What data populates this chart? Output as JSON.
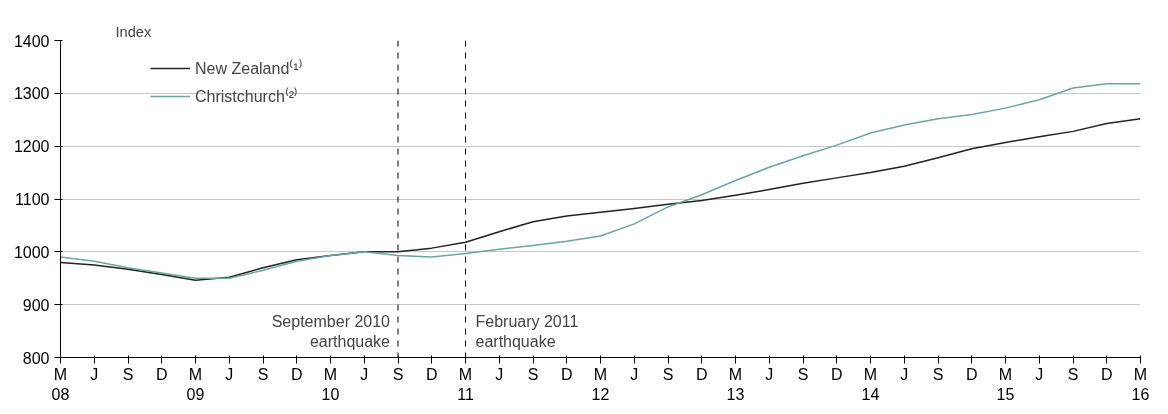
{
  "chart_data": {
    "type": "line",
    "ylabel": "Index",
    "x": [
      "2008-03",
      "2008-06",
      "2008-09",
      "2008-12",
      "2009-03",
      "2009-06",
      "2009-09",
      "2009-12",
      "2010-03",
      "2010-06",
      "2010-09",
      "2010-12",
      "2011-03",
      "2011-06",
      "2011-09",
      "2011-12",
      "2012-03",
      "2012-06",
      "2012-09",
      "2012-12",
      "2013-03",
      "2013-06",
      "2013-09",
      "2013-12",
      "2014-03",
      "2014-06",
      "2014-09",
      "2014-12",
      "2015-03",
      "2015-06",
      "2015-09",
      "2015-12",
      "2016-03"
    ],
    "xlim": [
      "2008-03",
      "2016-03"
    ],
    "xticks": [
      {
        "value": "2008-03",
        "label": "M\n08"
      },
      {
        "value": "2008-06",
        "label": "J"
      },
      {
        "value": "2008-09",
        "label": "S"
      },
      {
        "value": "2008-12",
        "label": "D"
      },
      {
        "value": "2009-03",
        "label": "M\n09"
      },
      {
        "value": "2009-06",
        "label": "J"
      },
      {
        "value": "2009-09",
        "label": "S"
      },
      {
        "value": "2009-12",
        "label": "D"
      },
      {
        "value": "2010-03",
        "label": "M\n10"
      },
      {
        "value": "2010-06",
        "label": "J"
      },
      {
        "value": "2010-09",
        "label": "S"
      },
      {
        "value": "2010-12",
        "label": "D"
      },
      {
        "value": "2011-03",
        "label": "M\n11"
      },
      {
        "value": "2011-06",
        "label": "J"
      },
      {
        "value": "2011-09",
        "label": "S"
      },
      {
        "value": "2011-12",
        "label": "D"
      },
      {
        "value": "2012-03",
        "label": "M\n12"
      },
      {
        "value": "2012-06",
        "label": "J"
      },
      {
        "value": "2012-09",
        "label": "S"
      },
      {
        "value": "2012-12",
        "label": "D"
      },
      {
        "value": "2013-03",
        "label": "M\n13"
      },
      {
        "value": "2013-06",
        "label": "J"
      },
      {
        "value": "2013-09",
        "label": "S"
      },
      {
        "value": "2013-12",
        "label": "D"
      },
      {
        "value": "2014-03",
        "label": "M\n14"
      },
      {
        "value": "2014-06",
        "label": "J"
      },
      {
        "value": "2014-09",
        "label": "S"
      },
      {
        "value": "2014-12",
        "label": "D"
      },
      {
        "value": "2015-03",
        "label": "M\n15"
      },
      {
        "value": "2015-06",
        "label": "J"
      },
      {
        "value": "2015-09",
        "label": "S"
      },
      {
        "value": "2015-12",
        "label": "D"
      },
      {
        "value": "2016-03",
        "label": "M\n16"
      }
    ],
    "series": [
      {
        "name": "New Zealand⁽¹⁾",
        "color": "#222222",
        "values": [
          980,
          975,
          967,
          957,
          946,
          952,
          970,
          985,
          993,
          1000,
          1000,
          1007,
          1018,
          1038,
          1057,
          1068,
          1075,
          1082,
          1090,
          1097,
          1107,
          1118,
          1130,
          1140,
          1150,
          1162,
          1178,
          1195,
          1207,
          1218,
          1228,
          1243,
          1252
        ]
      },
      {
        "name": "Christchurch⁽²⁾",
        "color": "#6aa6a0",
        "values": [
          990,
          982,
          970,
          960,
          950,
          950,
          965,
          982,
          993,
          1000,
          993,
          990,
          997,
          1005,
          1012,
          1020,
          1030,
          1053,
          1085,
          1108,
          1135,
          1160,
          1182,
          1202,
          1225,
          1240,
          1252,
          1260,
          1272,
          1288,
          1310,
          1318,
          1318
        ]
      }
    ],
    "ylim": [
      800,
      1400
    ],
    "yticks": [
      800,
      900,
      1000,
      1100,
      1200,
      1300,
      1400
    ],
    "grid": "y",
    "legend": "top left",
    "line_style": "solid",
    "ref_lines": [
      {
        "axis": "x",
        "value": "2010-09",
        "label": "September 2010\nearthquake",
        "line_style": "dashed",
        "color": "#000000"
      },
      {
        "axis": "x",
        "value": "2011-03",
        "label": "February 2011\nearthquake",
        "line_style": "dashed",
        "color": "#000000"
      }
    ]
  }
}
